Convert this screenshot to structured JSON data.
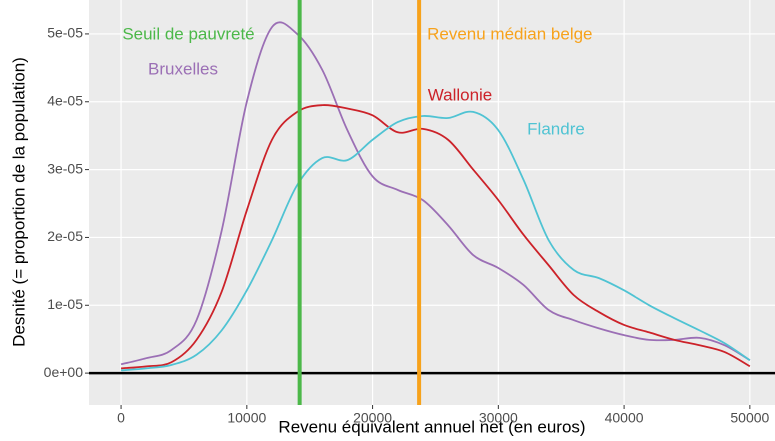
{
  "chart_data": {
    "type": "line",
    "x_label": "Revenu équivalent annuel net (en euros)",
    "y_label": "Desnité (= proportion de la population)",
    "x": [
      0,
      2000,
      4000,
      6000,
      8000,
      10000,
      12000,
      14000,
      16000,
      18000,
      20000,
      22000,
      24000,
      26000,
      28000,
      30000,
      32000,
      34000,
      36000,
      38000,
      40000,
      42000,
      44000,
      46000,
      48000,
      50000
    ],
    "series": [
      {
        "name": "Bruxelles",
        "color": "#9b6fb5",
        "values": [
          1.3e-06,
          2.2e-06,
          3.4e-06,
          7.8e-06,
          2.1e-05,
          4e-05,
          5.1e-05,
          5e-05,
          4.47e-05,
          3.58e-05,
          2.9e-05,
          2.7e-05,
          2.55e-05,
          2.18e-05,
          1.74e-05,
          1.55e-05,
          1.3e-05,
          9.3e-06,
          7.8e-06,
          6.6e-06,
          5.6e-06,
          4.9e-06,
          4.9e-06,
          5.2e-06,
          4.1e-06,
          1.9e-06
        ]
      },
      {
        "name": "Wallonie",
        "color": "#cc2229",
        "values": [
          7e-07,
          1e-06,
          1.6e-06,
          4.9e-06,
          1.2e-05,
          2.4e-05,
          3.44e-05,
          3.85e-05,
          3.95e-05,
          3.9e-05,
          3.8e-05,
          3.55e-05,
          3.6e-05,
          3.44e-05,
          3e-05,
          2.55e-05,
          2.04e-05,
          1.59e-05,
          1.15e-05,
          9e-06,
          7.1e-06,
          6e-06,
          4.9e-06,
          4.1e-06,
          3.1e-06,
          1e-06
        ]
      },
      {
        "name": "Flandre",
        "color": "#4fc3d3",
        "values": [
          4e-07,
          7e-07,
          1.2e-06,
          2.7e-06,
          6.3e-06,
          1.22e-05,
          1.96e-05,
          2.77e-05,
          3.17e-05,
          3.14e-05,
          3.44e-05,
          3.7e-05,
          3.79e-05,
          3.76e-05,
          3.85e-05,
          3.58e-05,
          2.85e-05,
          1.96e-05,
          1.52e-05,
          1.4e-05,
          1.22e-05,
          1e-05,
          8.1e-06,
          6.3e-06,
          4.4e-06,
          1.9e-06
        ]
      }
    ],
    "vlines": [
      {
        "label": "Seuil de pauvreté",
        "value": 14200,
        "color": "#4cb849"
      },
      {
        "label": "Revenu médian belge",
        "value": 23700,
        "color": "#f7a21b"
      }
    ],
    "xlim": [
      -2550,
      52000
    ],
    "ylim": [
      -4.7e-06,
      5.5e-05
    ],
    "xticks": [
      0,
      10000,
      20000,
      30000,
      40000,
      50000
    ],
    "yticks": [
      {
        "value": 0,
        "label": "0e+00"
      },
      {
        "value": 1e-05,
        "label": "1e-05"
      },
      {
        "value": 2e-05,
        "label": "2e-05"
      },
      {
        "value": 3e-05,
        "label": "3e-05"
      },
      {
        "value": 4e-05,
        "label": "4e-05"
      },
      {
        "value": 5e-05,
        "label": "5e-05"
      }
    ],
    "grid": true
  }
}
